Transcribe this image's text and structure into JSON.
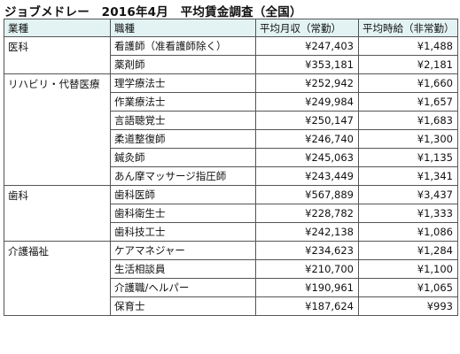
{
  "title": "ジョブメドレー　2016年4月　平均賃金調査（全国）",
  "headers": [
    "業種",
    "職種",
    "平均月収（常勤）",
    "平均時給（非常勤）"
  ],
  "groups": [
    {
      "industry": "医科",
      "rows": [
        {
          "job": "看護師（准看護師除く）",
          "monthly": "¥247,403",
          "hourly": "¥1,488"
        },
        {
          "job": "薬剤師",
          "monthly": "¥353,181",
          "hourly": "¥2,181"
        }
      ]
    },
    {
      "industry": "リハビリ・代替医療",
      "rows": [
        {
          "job": "理学療法士",
          "monthly": "¥252,942",
          "hourly": "¥1,660"
        },
        {
          "job": "作業療法士",
          "monthly": "¥249,984",
          "hourly": "¥1,657"
        },
        {
          "job": "言語聴覚士",
          "monthly": "¥250,147",
          "hourly": "¥1,683"
        },
        {
          "job": "柔道整復師",
          "monthly": "¥246,740",
          "hourly": "¥1,300"
        },
        {
          "job": "鍼灸師",
          "monthly": "¥245,063",
          "hourly": "¥1,135"
        },
        {
          "job": "あん摩マッサージ指圧師",
          "monthly": "¥243,449",
          "hourly": "¥1,341"
        }
      ]
    },
    {
      "industry": "歯科",
      "rows": [
        {
          "job": "歯科医師",
          "monthly": "¥567,889",
          "hourly": "¥3,437"
        },
        {
          "job": "歯科衛生士",
          "monthly": "¥228,782",
          "hourly": "¥1,333"
        },
        {
          "job": "歯科技工士",
          "monthly": "¥242,138",
          "hourly": "¥1,086"
        }
      ]
    },
    {
      "industry": "介護福祉",
      "rows": [
        {
          "job": "ケアマネジャー",
          "monthly": "¥234,623",
          "hourly": "¥1,284"
        },
        {
          "job": "生活相談員",
          "monthly": "¥210,700",
          "hourly": "¥1,100"
        },
        {
          "job": "介護職/ヘルパー",
          "monthly": "¥190,961",
          "hourly": "¥1,065"
        },
        {
          "job": "保育士",
          "monthly": "¥187,624",
          "hourly": "¥993"
        }
      ]
    }
  ]
}
